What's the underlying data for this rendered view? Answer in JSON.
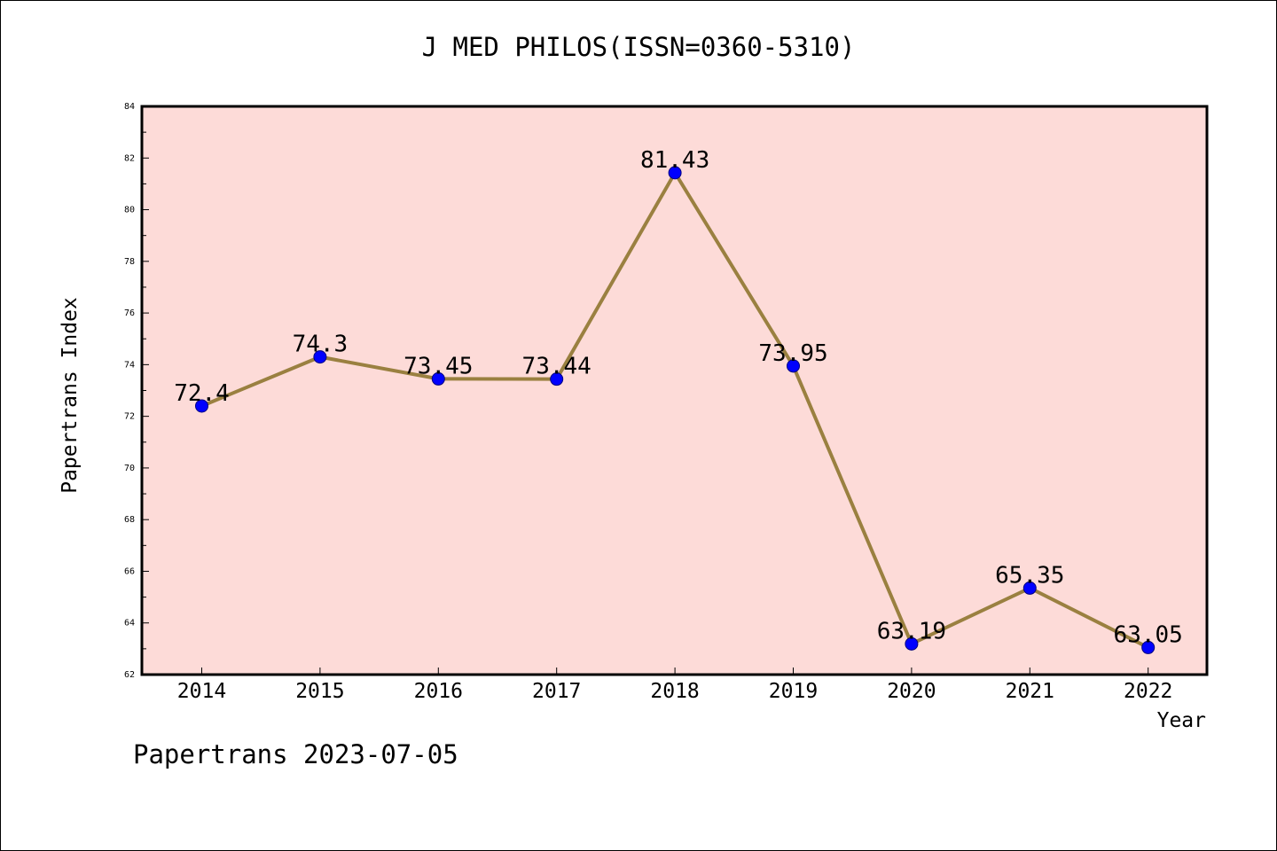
{
  "chart_data": {
    "type": "line",
    "title": "J MED PHILOS(ISSN=0360-5310)",
    "xlabel": "Year",
    "ylabel": "Papertrans Index",
    "categories": [
      "2014",
      "2015",
      "2016",
      "2017",
      "2018",
      "2019",
      "2020",
      "2021",
      "2022"
    ],
    "values": [
      72.4,
      74.3,
      73.45,
      73.44,
      81.43,
      73.95,
      63.19,
      65.35,
      63.05
    ],
    "data_labels": [
      "72.4",
      "74.3",
      "73.45",
      "73.44",
      "81.43",
      "73.95",
      "63.19",
      "65.35",
      "63.05"
    ],
    "ylim": [
      62,
      84
    ],
    "yticks": [
      "62",
      "64",
      "66",
      "68",
      "70",
      "72",
      "74",
      "76",
      "78",
      "80",
      "82",
      "84"
    ],
    "grid": false,
    "legend": "none",
    "colors": {
      "plot_background": "#fddbd8",
      "line": "#9a8040",
      "marker": "#0000ff",
      "marker_edge": "#000080"
    }
  },
  "footer": {
    "note": "Papertrans 2023-07-05"
  }
}
